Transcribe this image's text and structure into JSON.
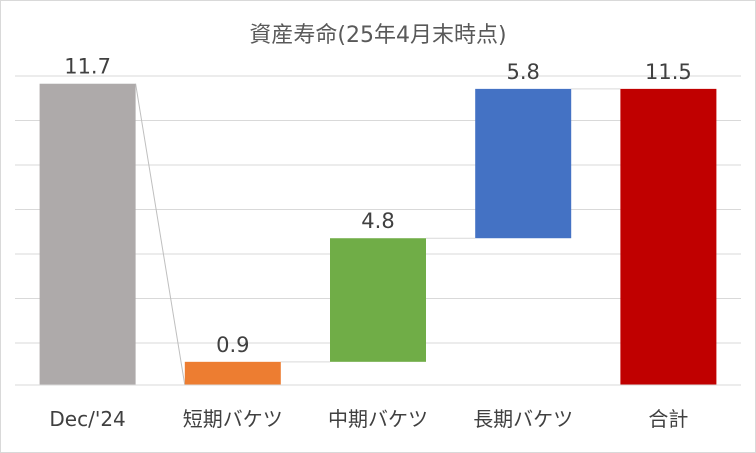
{
  "chart_data": {
    "type": "waterfall",
    "title": "資産寿命(25年4月末時点)",
    "categories": [
      "Dec/'24",
      "短期バケツ",
      "中期バケツ",
      "長期バケツ",
      "合計"
    ],
    "values": [
      11.7,
      0.9,
      4.8,
      5.8,
      11.5
    ],
    "value_labels": [
      "11.7",
      "0.9",
      "4.8",
      "5.8",
      "11.5"
    ],
    "bar_kind": [
      "total",
      "increase",
      "increase",
      "increase",
      "total"
    ],
    "colors": [
      "#aeaaaa",
      "#ed7d31",
      "#70ad47",
      "#4472c4",
      "#c00000"
    ],
    "ylim": [
      0,
      12
    ],
    "grid": true,
    "legend": "none"
  }
}
